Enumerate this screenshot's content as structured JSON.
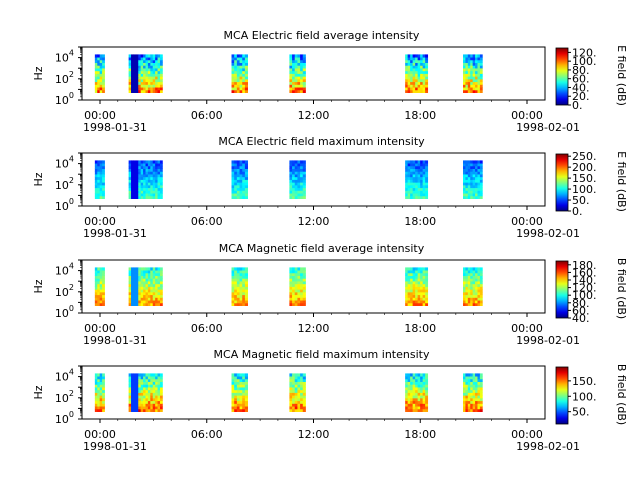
{
  "chart_data": [
    {
      "type": "heatmap",
      "title": "MCA  Electric field average intensity",
      "ylabel": "Hz",
      "y_scale": "log",
      "ylim": [
        1,
        100000
      ],
      "yticks": [
        {
          "value": 1,
          "base": "10",
          "exp": "0"
        },
        {
          "value": 100,
          "base": "10",
          "exp": "2"
        },
        {
          "value": 10000,
          "base": "10",
          "exp": "4"
        }
      ],
      "xticks": [
        "00:00",
        "06:00",
        "12:00",
        "18:00",
        "00:00"
      ],
      "x_range": [
        "1998-01-31 00:00",
        "1998-02-01 00:00"
      ],
      "x_start_label": "1998-01-31",
      "x_end_label": "1998-02-01",
      "colorbar_label": "E field (dB)",
      "colorbar_range": [
        0,
        130
      ],
      "colorbar_ticks": [
        "0.",
        "20.",
        "40.",
        "60.",
        "80.",
        "100.",
        "120."
      ],
      "data_intervals": [
        [
          "00:40",
          "01:10"
        ],
        [
          "02:25",
          "04:10"
        ],
        [
          "07:45",
          "08:35"
        ],
        [
          "10:45",
          "11:35"
        ],
        [
          "16:45",
          "17:55"
        ],
        [
          "19:45",
          "20:45"
        ]
      ],
      "typical_value_range_db": [
        20,
        110
      ]
    },
    {
      "type": "heatmap",
      "title": "MCA  Electric field maximum intensity",
      "ylabel": "Hz",
      "y_scale": "log",
      "ylim": [
        1,
        100000
      ],
      "yticks": [
        {
          "value": 1,
          "base": "10",
          "exp": "0"
        },
        {
          "value": 100,
          "base": "10",
          "exp": "2"
        },
        {
          "value": 10000,
          "base": "10",
          "exp": "4"
        }
      ],
      "xticks": [
        "00:00",
        "06:00",
        "12:00",
        "18:00",
        "00:00"
      ],
      "x_range": [
        "1998-01-31 00:00",
        "1998-02-01 00:00"
      ],
      "x_start_label": "1998-01-31",
      "x_end_label": "1998-02-01",
      "colorbar_label": "E field (dB)",
      "colorbar_range": [
        0,
        260
      ],
      "colorbar_ticks": [
        "0.",
        "50.",
        "100.",
        "150.",
        "200.",
        "250."
      ],
      "data_intervals": [
        [
          "00:40",
          "01:10"
        ],
        [
          "02:25",
          "04:10"
        ],
        [
          "07:45",
          "08:35"
        ],
        [
          "10:45",
          "11:35"
        ],
        [
          "16:45",
          "17:55"
        ],
        [
          "19:45",
          "20:45"
        ]
      ],
      "typical_value_range_db": [
        40,
        130
      ]
    },
    {
      "type": "heatmap",
      "title": "MCA  Magnetic field average intensity",
      "ylabel": "Hz",
      "y_scale": "log",
      "ylim": [
        1,
        100000
      ],
      "yticks": [
        {
          "value": 1,
          "base": "10",
          "exp": "0"
        },
        {
          "value": 100,
          "base": "10",
          "exp": "2"
        },
        {
          "value": 10000,
          "base": "10",
          "exp": "4"
        }
      ],
      "xticks": [
        "00:00",
        "06:00",
        "12:00",
        "18:00",
        "00:00"
      ],
      "x_range": [
        "1998-01-31 00:00",
        "1998-02-01 00:00"
      ],
      "x_start_label": "1998-01-31",
      "x_end_label": "1998-02-01",
      "colorbar_label": "B field (dB)",
      "colorbar_range": [
        40,
        190
      ],
      "colorbar_ticks": [
        "40.",
        "60.",
        "80.",
        "100.",
        "120.",
        "140.",
        "160.",
        "180."
      ],
      "data_intervals": [
        [
          "00:40",
          "01:10"
        ],
        [
          "02:25",
          "04:10"
        ],
        [
          "07:45",
          "08:35"
        ],
        [
          "10:45",
          "11:35"
        ],
        [
          "16:45",
          "17:55"
        ],
        [
          "19:45",
          "20:45"
        ]
      ],
      "typical_value_range_db": [
        90,
        160
      ]
    },
    {
      "type": "heatmap",
      "title": "MCA  Magnetic field maximum intensity",
      "ylabel": "Hz",
      "y_scale": "log",
      "ylim": [
        1,
        100000
      ],
      "yticks": [
        {
          "value": 1,
          "base": "10",
          "exp": "0"
        },
        {
          "value": 100,
          "base": "10",
          "exp": "2"
        },
        {
          "value": 10000,
          "base": "10",
          "exp": "4"
        }
      ],
      "xticks": [
        "00:00",
        "06:00",
        "12:00",
        "18:00",
        "00:00"
      ],
      "x_range": [
        "1998-01-31 00:00",
        "1998-02-01 00:00"
      ],
      "x_start_label": "1998-01-31",
      "x_end_label": "1998-02-01",
      "colorbar_label": "B field (dB)",
      "colorbar_range": [
        10,
        195
      ],
      "colorbar_ticks": [
        "50.",
        "100.",
        "150."
      ],
      "data_intervals": [
        [
          "00:40",
          "01:10"
        ],
        [
          "02:25",
          "04:10"
        ],
        [
          "07:45",
          "08:35"
        ],
        [
          "10:45",
          "11:35"
        ],
        [
          "16:45",
          "17:55"
        ],
        [
          "19:45",
          "20:45"
        ]
      ],
      "typical_value_range_db": [
        60,
        170
      ]
    }
  ]
}
